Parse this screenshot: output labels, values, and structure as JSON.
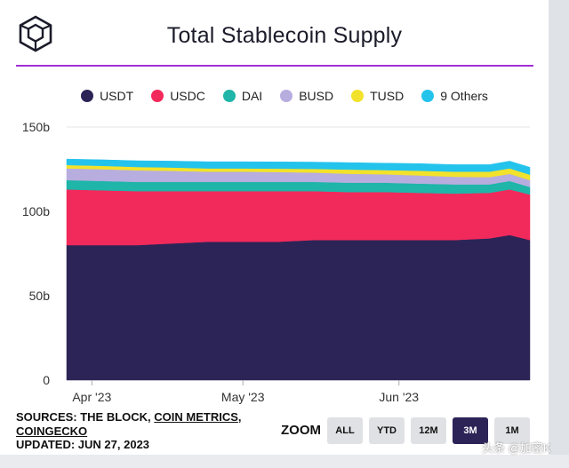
{
  "header": {
    "title": "Total Stablecoin Supply"
  },
  "colors": {
    "accent_rule": "#a32fd3",
    "zoom_active": "#2c2457"
  },
  "legend": [
    {
      "label": "USDT",
      "color": "#2c2457"
    },
    {
      "label": "USDC",
      "color": "#f2295b"
    },
    {
      "label": "DAI",
      "color": "#1fb5a8"
    },
    {
      "label": "BUSD",
      "color": "#b7addf"
    },
    {
      "label": "TUSD",
      "color": "#f2e22c"
    },
    {
      "label": "9 Others",
      "color": "#24c3ec"
    }
  ],
  "footer": {
    "sources_prefix": "SOURCES: THE BLOCK, ",
    "source_link_1": "COIN METRICS",
    "sources_sep": ",",
    "source_link_2": "COINGECKO",
    "updated": "UPDATED: JUN 27, 2023"
  },
  "zoom": {
    "label": "ZOOM",
    "buttons": [
      "ALL",
      "YTD",
      "12M",
      "3M",
      "1M"
    ],
    "active": "3M"
  },
  "watermark": "头条 @加密K",
  "chart_data": {
    "type": "area",
    "stacked": true,
    "title": "Total Stablecoin Supply",
    "x": [
      "2023-03-27",
      "2023-04-03",
      "2023-04-10",
      "2023-04-17",
      "2023-04-24",
      "2023-05-01",
      "2023-05-08",
      "2023-05-15",
      "2023-05-22",
      "2023-05-29",
      "2023-06-05",
      "2023-06-12",
      "2023-06-19",
      "2023-06-23",
      "2023-06-27"
    ],
    "x_ticks": [
      {
        "at": "2023-04-01",
        "label": "Apr '23"
      },
      {
        "at": "2023-05-01",
        "label": "May '23"
      },
      {
        "at": "2023-06-01",
        "label": "Jun '23"
      }
    ],
    "y_ticks": [
      {
        "value": 0,
        "label": "0"
      },
      {
        "value": 50,
        "label": "50b"
      },
      {
        "value": 100,
        "label": "100b"
      },
      {
        "value": 150,
        "label": "150b"
      }
    ],
    "ylim": [
      0,
      150
    ],
    "series": [
      {
        "name": "USDT",
        "color": "#2c2457",
        "values": [
          80,
          80,
          80,
          81,
          82,
          82,
          82,
          83,
          83,
          83,
          83,
          83,
          84,
          86,
          83
        ]
      },
      {
        "name": "USDC",
        "color": "#f2295b",
        "values": [
          33,
          32.5,
          32,
          31,
          30,
          30,
          30,
          29,
          28.5,
          28.5,
          28,
          27.5,
          27,
          27,
          27
        ]
      },
      {
        "name": "DAI",
        "color": "#1fb5a8",
        "values": [
          5.5,
          5.5,
          5.5,
          5.5,
          5.5,
          5.5,
          5.5,
          5.5,
          5.5,
          5.5,
          5.5,
          5.5,
          5,
          5,
          4.5
        ]
      },
      {
        "name": "BUSD",
        "color": "#b7addf",
        "values": [
          7,
          7,
          6.8,
          6.5,
          6,
          6,
          5.8,
          5.5,
          5.3,
          5,
          4.8,
          4.5,
          4.3,
          4.2,
          4
        ]
      },
      {
        "name": "TUSD",
        "color": "#f2e22c",
        "values": [
          2,
          2,
          2,
          2,
          2,
          2,
          2,
          2.2,
          2.5,
          2.5,
          2.8,
          3,
          3.2,
          3.3,
          3.3
        ]
      },
      {
        "name": "9 Others",
        "color": "#24c3ec",
        "values": [
          3.5,
          3.6,
          3.7,
          3.8,
          3.9,
          3.9,
          4,
          4,
          4.1,
          4.1,
          4.2,
          4.2,
          4.2,
          4.3,
          4.3
        ]
      }
    ],
    "grid": "horizontal",
    "legend_position": "top"
  }
}
